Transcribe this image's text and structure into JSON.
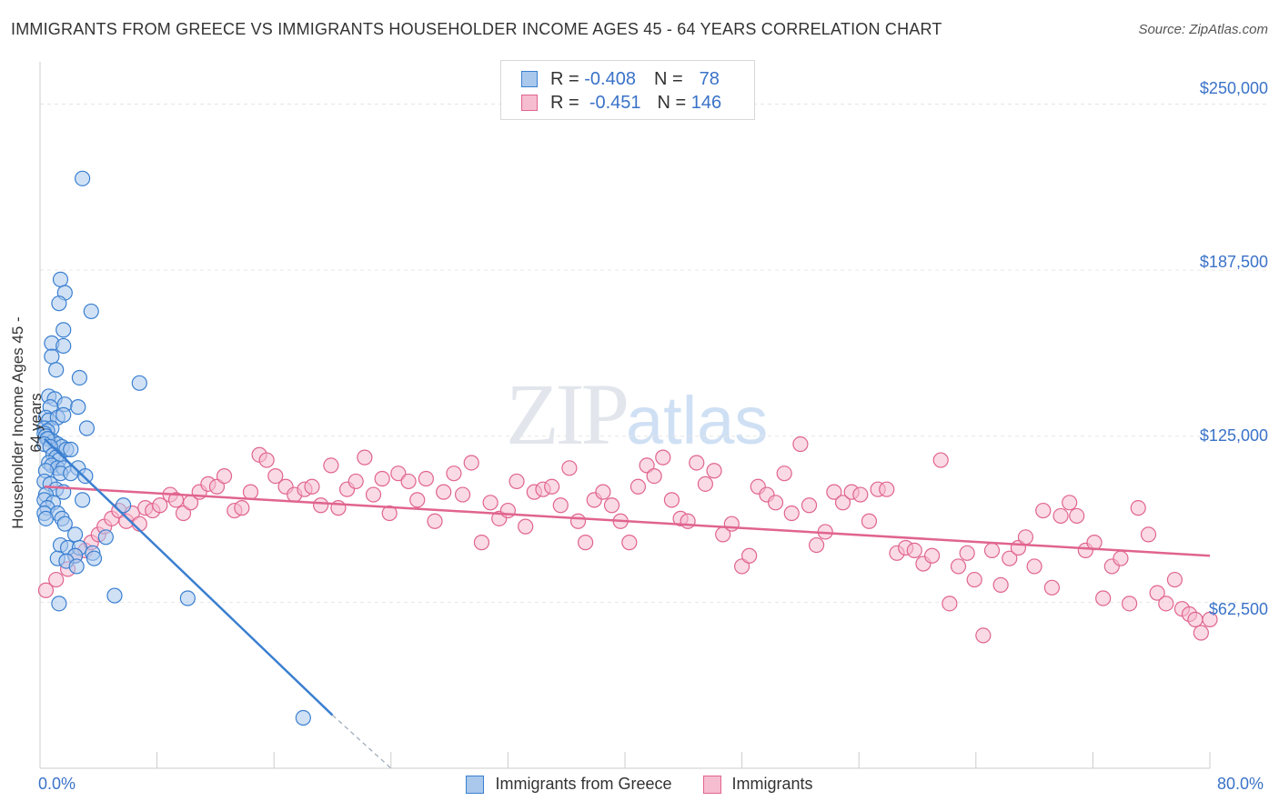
{
  "title": "IMMIGRANTS FROM GREECE VS IMMIGRANTS HOUSEHOLDER INCOME AGES 45 - 64 YEARS CORRELATION CHART",
  "source": "Source: ZipAtlas.com",
  "watermark": {
    "zip": "ZIP",
    "atlas": "atlas"
  },
  "legend_top": {
    "rows": [
      {
        "r_label": "R =",
        "r_value": "-0.408",
        "n_label": "N =",
        "n_value": "78"
      },
      {
        "r_label": "R =",
        "r_value": "-0.451",
        "n_label": "N =",
        "n_value": "146"
      }
    ]
  },
  "colors": {
    "blue": "#3a7fd0",
    "blue_fill": "#a9c8ec",
    "pink": "#e0648f",
    "pink_fill": "#f6bcd0",
    "grid": "#e6e6e6",
    "axis_text": "#3a72c8"
  },
  "chart_data": {
    "type": "scatter",
    "title": "IMMIGRANTS FROM GREECE VS IMMIGRANTS HOUSEHOLDER INCOME AGES 45 - 64 YEARS CORRELATION CHART",
    "xlabel": "",
    "ylabel": "Householder Income Ages 45 - 64 years",
    "xlim": [
      0,
      80
    ],
    "ylim": [
      0,
      262500
    ],
    "y_ticks": [
      62500,
      125000,
      187500,
      250000
    ],
    "y_tick_labels": [
      "$62,500",
      "$125,000",
      "$187,500",
      "$250,000"
    ],
    "x_tick_labels": [
      "0.0%",
      "80.0%"
    ],
    "grid": true,
    "legend_position": "bottom",
    "series": [
      {
        "name": "Immigrants from Greece",
        "color": "#3a7fd0",
        "R": -0.408,
        "N": 78,
        "trend": {
          "x": [
            0.3,
            20.0
          ],
          "y": [
            124000,
            20000
          ],
          "dashed_to": [
            24.0,
            0
          ]
        },
        "points": [
          [
            2.9,
            222000
          ],
          [
            1.4,
            184000
          ],
          [
            1.7,
            179000
          ],
          [
            3.5,
            172000
          ],
          [
            1.3,
            175000
          ],
          [
            1.6,
            165000
          ],
          [
            0.8,
            160000
          ],
          [
            1.6,
            159000
          ],
          [
            0.8,
            155000
          ],
          [
            1.1,
            150000
          ],
          [
            2.7,
            147000
          ],
          [
            6.8,
            145000
          ],
          [
            0.6,
            140000
          ],
          [
            1.0,
            139000
          ],
          [
            1.7,
            137000
          ],
          [
            0.7,
            136000
          ],
          [
            2.6,
            136000
          ],
          [
            0.4,
            132000
          ],
          [
            0.6,
            131000
          ],
          [
            1.2,
            132000
          ],
          [
            1.6,
            133000
          ],
          [
            0.3,
            128000
          ],
          [
            0.8,
            128000
          ],
          [
            0.5,
            127000
          ],
          [
            3.2,
            128000
          ],
          [
            0.3,
            126000
          ],
          [
            0.4,
            125000
          ],
          [
            0.6,
            124000
          ],
          [
            0.9,
            123000
          ],
          [
            1.2,
            122000
          ],
          [
            0.5,
            124000
          ],
          [
            0.3,
            122000
          ],
          [
            1.5,
            121000
          ],
          [
            1.8,
            120000
          ],
          [
            2.1,
            120000
          ],
          [
            0.7,
            121000
          ],
          [
            0.9,
            118000
          ],
          [
            1.1,
            117000
          ],
          [
            1.3,
            116000
          ],
          [
            0.6,
            115000
          ],
          [
            0.8,
            114000
          ],
          [
            1.2,
            113000
          ],
          [
            1.6,
            113000
          ],
          [
            2.6,
            113000
          ],
          [
            0.4,
            112000
          ],
          [
            1.4,
            111000
          ],
          [
            2.1,
            111000
          ],
          [
            3.1,
            110000
          ],
          [
            0.3,
            108000
          ],
          [
            0.7,
            107000
          ],
          [
            1.1,
            105000
          ],
          [
            1.6,
            104000
          ],
          [
            0.4,
            103000
          ],
          [
            0.3,
            101000
          ],
          [
            0.9,
            100000
          ],
          [
            2.9,
            101000
          ],
          [
            0.5,
            98000
          ],
          [
            0.3,
            96000
          ],
          [
            1.2,
            96000
          ],
          [
            0.4,
            94000
          ],
          [
            1.5,
            94000
          ],
          [
            5.7,
            99000
          ],
          [
            1.7,
            92000
          ],
          [
            2.4,
            88000
          ],
          [
            4.5,
            87000
          ],
          [
            1.4,
            84000
          ],
          [
            1.9,
            83000
          ],
          [
            2.7,
            83000
          ],
          [
            3.6,
            81000
          ],
          [
            1.2,
            79000
          ],
          [
            2.4,
            80000
          ],
          [
            3.7,
            79000
          ],
          [
            1.8,
            78000
          ],
          [
            2.5,
            76000
          ],
          [
            1.3,
            62000
          ],
          [
            5.1,
            65000
          ],
          [
            10.1,
            64000
          ],
          [
            18.0,
            19000
          ]
        ]
      },
      {
        "name": "Immigrants",
        "color": "#e0648f",
        "R": -0.451,
        "N": 146,
        "trend": {
          "x": [
            0.3,
            80.0
          ],
          "y": [
            106000,
            80000
          ]
        },
        "points": [
          [
            0.4,
            67000
          ],
          [
            1.1,
            71000
          ],
          [
            1.9,
            75000
          ],
          [
            2.4,
            80000
          ],
          [
            3.1,
            82000
          ],
          [
            3.5,
            85000
          ],
          [
            4.0,
            88000
          ],
          [
            4.4,
            91000
          ],
          [
            4.9,
            94000
          ],
          [
            5.4,
            97000
          ],
          [
            5.9,
            93000
          ],
          [
            6.3,
            96000
          ],
          [
            6.8,
            92000
          ],
          [
            7.2,
            98000
          ],
          [
            7.7,
            97000
          ],
          [
            8.2,
            99000
          ],
          [
            8.9,
            103000
          ],
          [
            9.3,
            101000
          ],
          [
            9.8,
            96000
          ],
          [
            10.3,
            100000
          ],
          [
            10.9,
            104000
          ],
          [
            11.5,
            107000
          ],
          [
            12.1,
            106000
          ],
          [
            12.6,
            110000
          ],
          [
            13.3,
            97000
          ],
          [
            13.8,
            98000
          ],
          [
            14.4,
            104000
          ],
          [
            15.0,
            118000
          ],
          [
            15.5,
            116000
          ],
          [
            16.1,
            110000
          ],
          [
            16.8,
            106000
          ],
          [
            17.4,
            103000
          ],
          [
            18.1,
            105000
          ],
          [
            18.6,
            106000
          ],
          [
            19.2,
            99000
          ],
          [
            19.9,
            114000
          ],
          [
            20.4,
            98000
          ],
          [
            21.0,
            105000
          ],
          [
            21.6,
            108000
          ],
          [
            22.2,
            117000
          ],
          [
            22.8,
            103000
          ],
          [
            23.4,
            109000
          ],
          [
            23.9,
            96000
          ],
          [
            24.5,
            111000
          ],
          [
            25.2,
            108000
          ],
          [
            25.8,
            101000
          ],
          [
            26.4,
            109000
          ],
          [
            27.0,
            93000
          ],
          [
            27.6,
            104000
          ],
          [
            28.3,
            111000
          ],
          [
            28.9,
            103000
          ],
          [
            29.5,
            115000
          ],
          [
            30.2,
            85000
          ],
          [
            30.8,
            100000
          ],
          [
            31.4,
            94000
          ],
          [
            32.0,
            97000
          ],
          [
            32.6,
            108000
          ],
          [
            33.2,
            91000
          ],
          [
            33.8,
            104000
          ],
          [
            34.4,
            105000
          ],
          [
            35.0,
            106000
          ],
          [
            35.6,
            99000
          ],
          [
            36.2,
            113000
          ],
          [
            36.8,
            93000
          ],
          [
            37.3,
            85000
          ],
          [
            37.9,
            101000
          ],
          [
            38.5,
            104000
          ],
          [
            39.1,
            99000
          ],
          [
            39.7,
            93000
          ],
          [
            40.3,
            85000
          ],
          [
            40.9,
            106000
          ],
          [
            41.5,
            114000
          ],
          [
            42.0,
            110000
          ],
          [
            42.6,
            117000
          ],
          [
            43.2,
            101000
          ],
          [
            43.8,
            94000
          ],
          [
            44.3,
            93000
          ],
          [
            44.9,
            115000
          ],
          [
            45.5,
            107000
          ],
          [
            46.1,
            112000
          ],
          [
            46.7,
            88000
          ],
          [
            47.3,
            92000
          ],
          [
            48.0,
            76000
          ],
          [
            48.5,
            80000
          ],
          [
            49.1,
            106000
          ],
          [
            49.7,
            103000
          ],
          [
            50.3,
            100000
          ],
          [
            50.9,
            111000
          ],
          [
            51.4,
            96000
          ],
          [
            52.0,
            122000
          ],
          [
            52.6,
            99000
          ],
          [
            53.1,
            84000
          ],
          [
            53.7,
            89000
          ],
          [
            54.3,
            104000
          ],
          [
            54.9,
            100000
          ],
          [
            55.5,
            104000
          ],
          [
            56.1,
            103000
          ],
          [
            56.7,
            93000
          ],
          [
            57.3,
            105000
          ],
          [
            57.9,
            105000
          ],
          [
            58.6,
            81000
          ],
          [
            59.2,
            83000
          ],
          [
            59.8,
            82000
          ],
          [
            60.4,
            77000
          ],
          [
            61.0,
            80000
          ],
          [
            61.6,
            116000
          ],
          [
            62.2,
            62000
          ],
          [
            62.8,
            76000
          ],
          [
            63.4,
            81000
          ],
          [
            63.9,
            71000
          ],
          [
            64.5,
            50000
          ],
          [
            65.1,
            82000
          ],
          [
            65.7,
            69000
          ],
          [
            66.3,
            79000
          ],
          [
            66.9,
            83000
          ],
          [
            67.4,
            87000
          ],
          [
            68.0,
            76000
          ],
          [
            68.6,
            97000
          ],
          [
            69.2,
            68000
          ],
          [
            69.8,
            95000
          ],
          [
            70.4,
            100000
          ],
          [
            70.9,
            95000
          ],
          [
            71.5,
            82000
          ],
          [
            72.1,
            85000
          ],
          [
            72.7,
            64000
          ],
          [
            73.3,
            76000
          ],
          [
            73.9,
            79000
          ],
          [
            74.5,
            62000
          ],
          [
            75.1,
            98000
          ],
          [
            75.8,
            88000
          ],
          [
            76.4,
            66000
          ],
          [
            77.0,
            62000
          ],
          [
            77.6,
            71000
          ],
          [
            78.1,
            60000
          ],
          [
            78.6,
            58000
          ],
          [
            79.0,
            56000
          ],
          [
            79.4,
            51000
          ],
          [
            80.0,
            56000
          ]
        ]
      }
    ]
  }
}
